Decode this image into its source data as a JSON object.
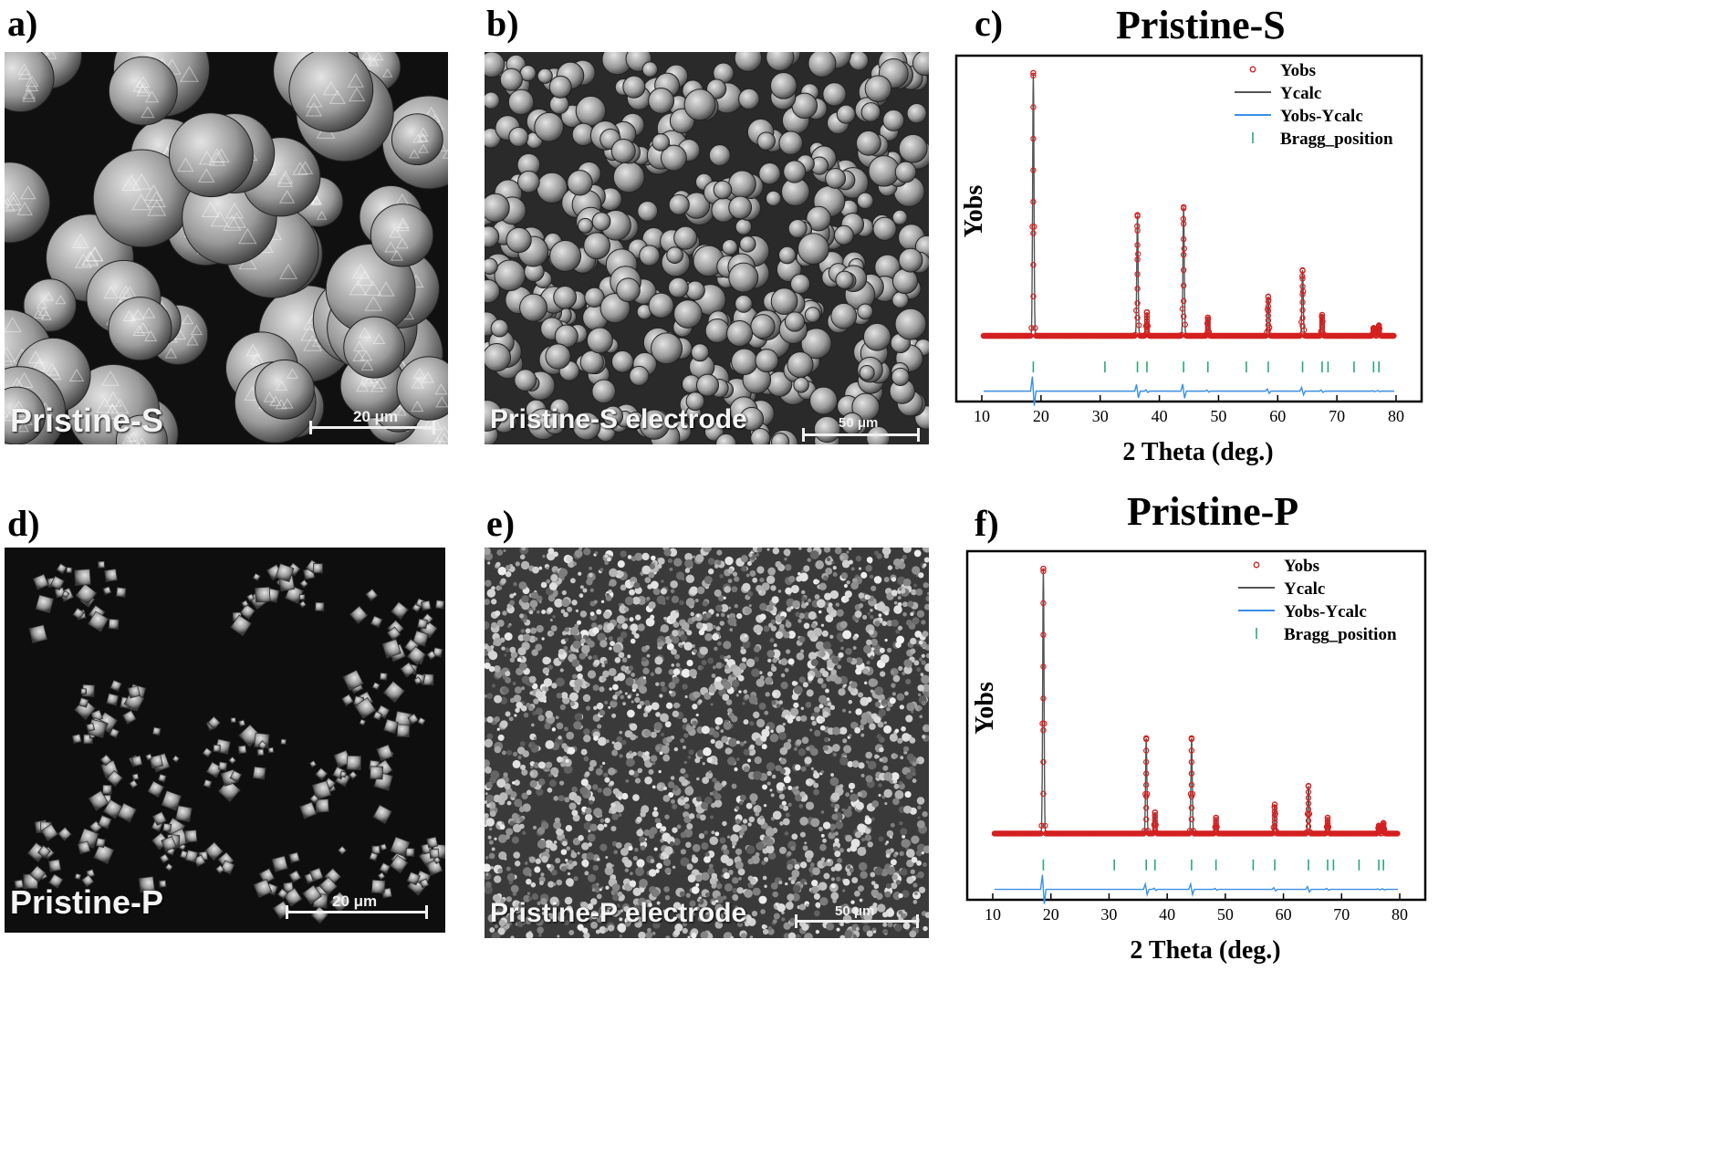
{
  "panels": {
    "a": {
      "letter": "a)",
      "label": "Pristine-S",
      "scale": "20 μm"
    },
    "b": {
      "letter": "b)",
      "label": "Pristine-S electrode",
      "scale": "50 μm"
    },
    "c": {
      "letter": "c)",
      "title": "Pristine-S"
    },
    "d": {
      "letter": "d)",
      "label": "Pristine-P",
      "scale": "20 μm"
    },
    "e": {
      "letter": "e)",
      "label": "Pristine-P electrode",
      "scale": "50 μm"
    },
    "f": {
      "letter": "f)",
      "title": "Pristine-P"
    }
  },
  "colors": {
    "yobs": "#d42020",
    "ycalc": "#555555",
    "diff": "#3a8ee6",
    "bragg": "#2aa876"
  },
  "chart_data": [
    {
      "type": "line",
      "title": "Pristine-S",
      "xlabel": "2 Theta (deg.)",
      "ylabel": "Yobs",
      "xlim": [
        10,
        80
      ],
      "xticks": [
        10,
        20,
        30,
        40,
        50,
        60,
        70,
        80
      ],
      "legend": [
        "Yobs",
        "Ycalc",
        "Yobs-Ycalc",
        "Bragg_position"
      ],
      "legend_position": "top-right",
      "peaks": [
        {
          "x": 18.7,
          "y": 1.0
        },
        {
          "x": 36.3,
          "y": 0.46
        },
        {
          "x": 37.9,
          "y": 0.09
        },
        {
          "x": 44.1,
          "y": 0.49
        },
        {
          "x": 48.2,
          "y": 0.07
        },
        {
          "x": 58.4,
          "y": 0.15
        },
        {
          "x": 64.2,
          "y": 0.25
        },
        {
          "x": 67.5,
          "y": 0.08
        },
        {
          "x": 76.2,
          "y": 0.03
        },
        {
          "x": 77.1,
          "y": 0.04
        }
      ],
      "bragg_positions": [
        18.7,
        30.8,
        36.3,
        37.9,
        44.1,
        48.2,
        54.7,
        58.4,
        64.2,
        67.5,
        68.5,
        72.9,
        76.2,
        77.1
      ]
    },
    {
      "type": "line",
      "title": "Pristine-P",
      "xlabel": "2 Theta (deg.)",
      "ylabel": "Yobs",
      "xlim": [
        10,
        80
      ],
      "xticks": [
        10,
        20,
        30,
        40,
        50,
        60,
        70,
        80
      ],
      "legend": [
        "Yobs",
        "Ycalc",
        "Yobs-Ycalc",
        "Bragg_position"
      ],
      "legend_position": "top-right",
      "peaks": [
        {
          "x": 18.7,
          "y": 1.0
        },
        {
          "x": 36.4,
          "y": 0.36
        },
        {
          "x": 37.9,
          "y": 0.08
        },
        {
          "x": 44.2,
          "y": 0.36
        },
        {
          "x": 48.4,
          "y": 0.06
        },
        {
          "x": 58.5,
          "y": 0.11
        },
        {
          "x": 64.3,
          "y": 0.18
        },
        {
          "x": 67.6,
          "y": 0.06
        },
        {
          "x": 76.4,
          "y": 0.03
        },
        {
          "x": 77.2,
          "y": 0.04
        }
      ],
      "bragg_positions": [
        18.7,
        30.9,
        36.4,
        37.9,
        44.2,
        48.4,
        54.8,
        58.5,
        64.3,
        67.6,
        68.6,
        73.0,
        76.4,
        77.2
      ]
    }
  ]
}
